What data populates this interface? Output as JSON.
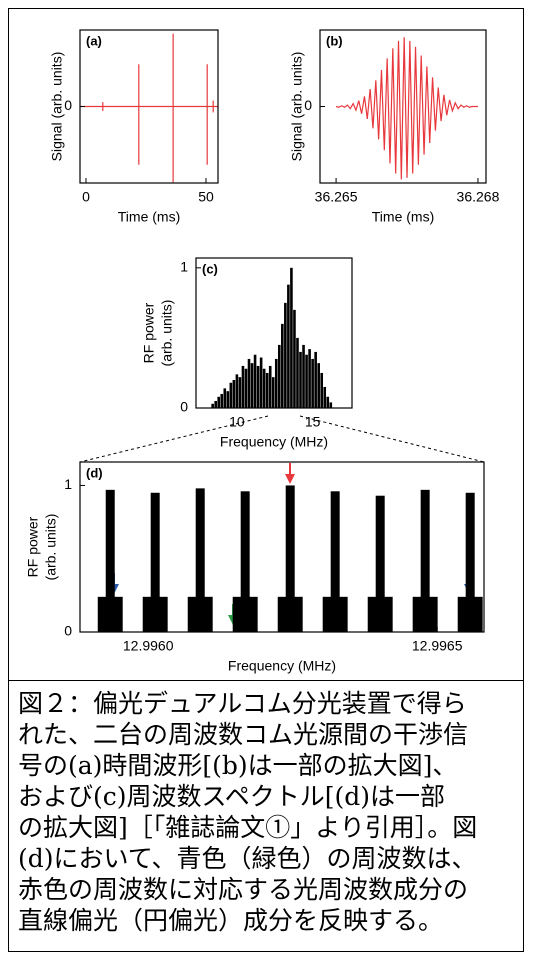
{
  "chart_data": [
    {
      "type": "line",
      "panel_label": "(a)",
      "x_label": "Time (ms)",
      "y_label": [
        "Signal (arb. units)"
      ],
      "x": [
        -2.5,
        7,
        7,
        7,
        7,
        22,
        22,
        22,
        22,
        36.3,
        36.3,
        36.3,
        36.3,
        50.5,
        50.5,
        50.5,
        50.5,
        53,
        53,
        53,
        53,
        55
      ],
      "values": [
        0,
        0,
        0.06,
        -0.06,
        0,
        0,
        0.58,
        -0.8,
        0,
        0,
        1,
        -1.04,
        0,
        0,
        0.58,
        -0.8,
        0,
        0,
        0.08,
        -0.08,
        0,
        0
      ],
      "color": "#e8383d",
      "xlim": [
        -2.5,
        55
      ],
      "ylim": [
        -1.05,
        1.05
      ],
      "xticks": [
        0,
        50
      ],
      "yticks": [
        0
      ]
    },
    {
      "type": "line",
      "panel_label": "(b)",
      "x_label": "Time (ms)",
      "y_label": [
        "Signal (arb. units)"
      ],
      "x": [
        36.265,
        36.26506,
        36.26512,
        36.26518,
        36.26524,
        36.2653,
        36.26536,
        36.26542,
        36.26548,
        36.26554,
        36.2656,
        36.26566,
        36.26572,
        36.26578,
        36.26584,
        36.2659,
        36.26596,
        36.26602,
        36.26608,
        36.26614,
        36.2662,
        36.26626,
        36.26632,
        36.26638,
        36.26644,
        36.2665,
        36.26656,
        36.26662,
        36.26668,
        36.26674,
        36.2668,
        36.26686,
        36.26692,
        36.26698,
        36.26704,
        36.2671,
        36.26716,
        36.26722,
        36.26728,
        36.26734,
        36.2674,
        36.26746,
        36.26752,
        36.26758,
        36.26764,
        36.2677,
        36.26776,
        36.26782,
        36.26788,
        36.26794,
        36.268
      ],
      "values": [
        0,
        -0.01,
        0.01,
        -0.01,
        0.02,
        -0.03,
        0.04,
        -0.05,
        0.08,
        -0.1,
        0.14,
        -0.17,
        0.24,
        -0.3,
        0.36,
        -0.45,
        0.5,
        -0.6,
        0.66,
        -0.78,
        0.8,
        -0.92,
        0.9,
        -1.0,
        0.95,
        -0.98,
        0.9,
        -0.92,
        0.82,
        -0.8,
        0.7,
        -0.66,
        0.55,
        -0.5,
        0.4,
        -0.33,
        0.26,
        -0.2,
        0.16,
        -0.12,
        0.09,
        -0.06,
        0.05,
        -0.03,
        0.02,
        -0.01,
        0.01,
        -0.01,
        0,
        0,
        0
      ],
      "color": "#e8383d",
      "xlim": [
        36.26466,
        36.26817
      ],
      "ylim": [
        -1.05,
        1.05
      ],
      "xticks": [
        36.265,
        36.268
      ],
      "yticks": [
        0
      ]
    },
    {
      "type": "bar",
      "panel_label": "(c)",
      "x_label": "Frequency (MHz)",
      "y_label": [
        "RF power",
        "(arb. units)"
      ],
      "x": [
        8.4,
        8.6,
        8.8,
        9.0,
        9.2,
        9.4,
        9.6,
        9.8,
        10.0,
        10.2,
        10.4,
        10.6,
        10.8,
        11.0,
        11.2,
        11.4,
        11.6,
        11.8,
        12.0,
        12.2,
        12.4,
        12.6,
        12.8,
        13.0,
        13.2,
        13.4,
        13.6,
        13.8,
        14.0,
        14.2,
        14.4,
        14.6,
        14.8,
        15.0,
        15.2,
        15.4,
        15.6,
        15.8,
        16.0,
        16.2
      ],
      "values": [
        0.03,
        0.05,
        0.08,
        0.1,
        0.14,
        0.12,
        0.18,
        0.2,
        0.24,
        0.22,
        0.3,
        0.28,
        0.35,
        0.32,
        0.38,
        0.3,
        0.36,
        0.28,
        0.25,
        0.3,
        0.22,
        0.35,
        0.45,
        0.6,
        0.75,
        0.88,
        1.0,
        0.7,
        0.5,
        0.4,
        0.45,
        0.38,
        0.42,
        0.35,
        0.4,
        0.32,
        0.25,
        0.15,
        0.08,
        0.04
      ],
      "color": "#000000",
      "xlim": [
        7.3,
        17.6
      ],
      "ylim": [
        0,
        1.07
      ],
      "xticks": [
        10,
        15
      ],
      "yticks": [
        0,
        1
      ]
    },
    {
      "type": "bar",
      "panel_label": "(d)",
      "x_label": "Frequency (MHz)",
      "y_label": [
        "RF power",
        "(arb. units)"
      ],
      "x": [
        12.9959205,
        12.9959343,
        12.9959481,
        12.9959983,
        12.9960121,
        12.9960259,
        12.9960762,
        12.99609,
        12.9961038,
        12.996154,
        12.9961678,
        12.9961816,
        12.9962319,
        12.9962457,
        12.9962595,
        12.9963097,
        12.9963235,
        12.9963373,
        12.9963876,
        12.9964014,
        12.9964152,
        12.9964654,
        12.9964792,
        12.996493,
        12.9965433,
        12.9965571,
        12.9965709
      ],
      "values": [
        0.24,
        0.97,
        0.24,
        0.24,
        0.95,
        0.24,
        0.24,
        0.98,
        0.24,
        0.24,
        0.96,
        0.24,
        0.24,
        1.0,
        0.24,
        0.24,
        0.96,
        0.24,
        0.24,
        0.93,
        0.24,
        0.24,
        0.97,
        0.24,
        0.24,
        0.95,
        0.24
      ],
      "color": "#000000",
      "xlim": [
        12.995882,
        12.996581
      ],
      "ylim": [
        0,
        1.16
      ],
      "xticks": [
        {
          "value": 12.996,
          "label": "12.9960"
        },
        {
          "value": 12.9965,
          "label": "12.9965"
        }
      ],
      "yticks": [
        0,
        1
      ]
    }
  ],
  "caption": {
    "lines": [
      "図２：偏光デュアルコム分光装置で得ら",
      "れた、二台の周波数コム光源間の干渉信",
      "号の(a)時間波形[(b)は一部の拡大図]、",
      "および(c)周波数スペクトル[(d)は一部",
      "の拡大図]［「雑誌論文①」より引用］。図",
      "(d)において、青色（緑色）の周波数は、",
      "赤色の周波数に対応する光周波数成分の",
      "直線偏光（円偏光）成分を反映する。"
    ]
  }
}
